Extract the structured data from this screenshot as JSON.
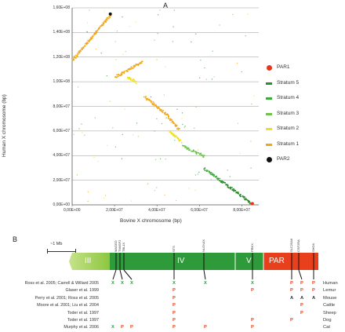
{
  "panel_a": {
    "letter": "A",
    "xlabel": "Bovine X chromosome (bp)",
    "ylabel": "Human X chromosome (bp)",
    "y_ticks": [
      "0,00E+00",
      "2,00E+07",
      "4,00E+07",
      "6,00E+07",
      "8,00E+07",
      "1,00E+08",
      "1,20E+08",
      "1,40E+08",
      "1,60E+08"
    ],
    "x_ticks": [
      "0,00E+00",
      "2,00E+07",
      "4,00E+07",
      "6,00E+07",
      "8,00E+07"
    ],
    "legend": [
      {
        "label": "PAR1",
        "color": "#e8341c",
        "shape": "dot"
      },
      {
        "label": "Stratum 5",
        "color": "#2e8b2e",
        "shape": "bar"
      },
      {
        "label": "Stratum 4",
        "color": "#3caa3c",
        "shape": "bar"
      },
      {
        "label": "Stratum 3",
        "color": "#6cc24a",
        "shape": "bar"
      },
      {
        "label": "Stratum 2",
        "color": "#f0e020",
        "shape": "bar"
      },
      {
        "label": "Stratum 1",
        "color": "#f0a818",
        "shape": "bar"
      },
      {
        "label": "PAR2",
        "color": "#111111",
        "shape": "dot"
      }
    ],
    "chart_data": {
      "type": "scatter",
      "xlabel": "Bovine X chromosome (bp)",
      "ylabel": "Human X chromosome (bp)",
      "xlim": [
        0,
        88000000
      ],
      "ylim": [
        0,
        160000000
      ],
      "grid": true,
      "legend_position": "right",
      "series": [
        {
          "name": "Stratum 1",
          "color": "#f0a818",
          "segments": [
            [
              0,
              118000000,
              18000000,
              155000000
            ],
            [
              20000000,
              104000000,
              33000000,
              117000000
            ],
            [
              34000000,
              88000000,
              45000000,
              73000000
            ],
            [
              45000000,
              72000000,
              50000000,
              62000000
            ]
          ]
        },
        {
          "name": "Stratum 2",
          "color": "#f0e020",
          "segments": [
            [
              46000000,
              60000000,
              51000000,
              52000000
            ],
            [
              26000000,
              104000000,
              30000000,
              100000000
            ]
          ]
        },
        {
          "name": "Stratum 3",
          "color": "#6cc24a",
          "segments": [
            [
              52000000,
              48000000,
              62000000,
              40000000
            ]
          ]
        },
        {
          "name": "Stratum 4",
          "color": "#3caa3c",
          "segments": [
            [
              62000000,
              30000000,
              70000000,
              20000000
            ]
          ]
        },
        {
          "name": "Stratum 5",
          "color": "#2e8b2e",
          "segments": [
            [
              70000000,
              20000000,
              84000000,
              2000000
            ]
          ]
        },
        {
          "name": "PAR1",
          "color": "#e8341c",
          "points": [
            [
              85000000,
              1000000
            ]
          ]
        },
        {
          "name": "PAR2",
          "color": "#111111",
          "points": [
            [
              18000000,
              155000000
            ]
          ]
        }
      ]
    }
  },
  "panel_b": {
    "letter": "B",
    "scale_label": "~1 Mb",
    "regions": [
      {
        "label": "III",
        "color": "#8cc63e"
      },
      {
        "label": "IV",
        "color": "#2e9a3a"
      },
      {
        "label": "V",
        "color": "#2e9a3a"
      },
      {
        "label": "PAR",
        "color": "#e8401c"
      }
    ],
    "genes": [
      "MAGED",
      "TM4SF2",
      "TBL1X",
      "STS",
      "NLGN4X",
      "PRKX",
      "SLC25A6",
      "CSF2RA",
      "SHOX"
    ],
    "references": [
      "Ross et al. 2005; Carrell & Willard 2005",
      "Glaser et al. 1999",
      "Perry et al. 2001; Ross et al. 2005",
      "Moore et al. 2001; Liu et al. 2004",
      "Toder et al. 1997",
      "Toder et al. 1997",
      "Murphy et al. 2006"
    ],
    "species": [
      "Human",
      "Lemur",
      "Mouse",
      "Cattle",
      "Sheep",
      "Dog",
      "Cat"
    ],
    "rows": [
      [
        {
          "m": "X",
          "c": "#2e9a3a",
          "col": 0
        },
        {
          "m": "X",
          "c": "#2e9a3a",
          "col": 1
        },
        {
          "m": "X",
          "c": "#2e9a3a",
          "col": 2
        },
        {
          "m": "X",
          "c": "#2e9a3a",
          "col": 3
        },
        {
          "m": "X",
          "c": "#2e9a3a",
          "col": 4
        },
        {
          "m": "X",
          "c": "#2e9a3a",
          "col": 5
        },
        {
          "m": "P",
          "c": "#e8401c",
          "col": 6
        },
        {
          "m": "P",
          "c": "#e8401c",
          "col": 7
        },
        {
          "m": "P",
          "c": "#e8401c",
          "col": 8
        }
      ],
      [
        {
          "m": "P",
          "c": "#e8401c",
          "col": 3
        },
        {
          "m": "P",
          "c": "#e8401c",
          "col": 5
        },
        {
          "m": "P",
          "c": "#e8401c",
          "col": 6
        },
        {
          "m": "P",
          "c": "#e8401c",
          "col": 7
        },
        {
          "m": "P",
          "c": "#e8401c",
          "col": 8
        }
      ],
      [
        {
          "m": "P",
          "c": "#e8401c",
          "col": 3
        },
        {
          "m": "A",
          "c": "#333333",
          "col": 6
        },
        {
          "m": "A",
          "c": "#333333",
          "col": 7
        },
        {
          "m": "A",
          "c": "#333333",
          "col": 8
        }
      ],
      [
        {
          "m": "P",
          "c": "#e8401c",
          "col": 3
        },
        {
          "m": "P",
          "c": "#e8401c",
          "col": 7
        }
      ],
      [
        {
          "m": "P",
          "c": "#e8401c",
          "col": 3
        },
        {
          "m": "P",
          "c": "#e8401c",
          "col": 7
        }
      ],
      [
        {
          "m": "P",
          "c": "#e8401c",
          "col": 3
        },
        {
          "m": "P",
          "c": "#e8401c",
          "col": 5
        },
        {
          "m": "P",
          "c": "#e8401c",
          "col": 6
        }
      ],
      [
        {
          "m": "X",
          "c": "#2e9a3a",
          "col": 0
        },
        {
          "m": "P",
          "c": "#e8401c",
          "col": 1
        },
        {
          "m": "P",
          "c": "#e8401c",
          "col": 2
        },
        {
          "m": "P",
          "c": "#e8401c",
          "col": 3
        },
        {
          "m": "P",
          "c": "#e8401c",
          "col": 4
        },
        {
          "m": "P",
          "c": "#e8401c",
          "col": 5
        }
      ]
    ]
  }
}
